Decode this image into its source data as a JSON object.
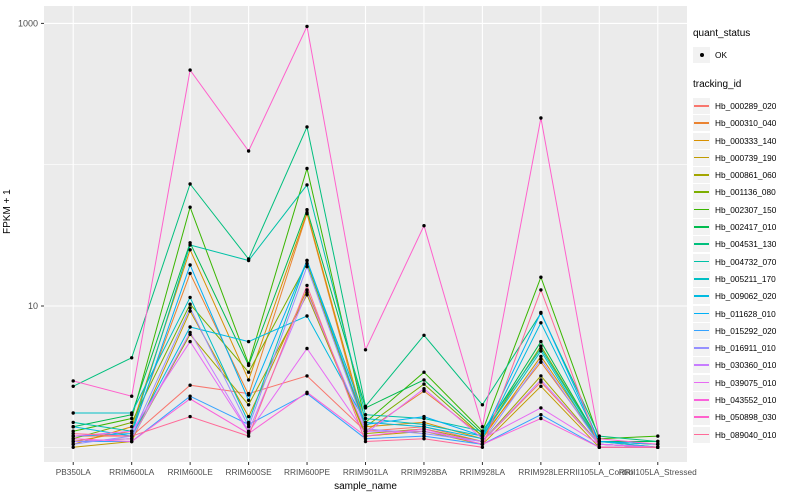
{
  "chart_data": {
    "type": "line",
    "xlabel": "sample_name",
    "ylabel": "FPKM + 1",
    "y_scale": "log10",
    "y_axis_ticks": [
      "10",
      "1000"
    ],
    "y_axis_tick_values": [
      10,
      1000
    ],
    "y_minor_gridline_values": [
      1,
      100
    ],
    "ylim": [
      0.78,
      1350
    ],
    "grid": "on",
    "legend_position": "right",
    "point_symbol_color": "#000000",
    "panel_background": "#EBEBEB",
    "gridline_color": "#FFFFFF",
    "axis_text_color": "#4D4D4D",
    "categories": [
      "PB350LA",
      "RRIM600LA",
      "RRIM600LE",
      "RRIM600SE",
      "RRIM600PE",
      "RRIM901LA",
      "RRIM928BA",
      "RRIM928LA",
      "RRIM928LE",
      "RRII105LA_Control",
      "RRII105LA_Stressed"
    ],
    "legend": {
      "quant_title": "quant_status",
      "quant_items": [
        {
          "label": "OK",
          "symbol": "black-point"
        }
      ],
      "tracking_title": "tracking_id"
    },
    "series": [
      {
        "name": "Hb_000289_020",
        "color": "#F8766D",
        "values": [
          1.2,
          1.2,
          2.75,
          2.4,
          3.2,
          1.3,
          1.4,
          1.1,
          2.9,
          1.05,
          1.0
        ]
      },
      {
        "name": "Hb_000310_040",
        "color": "#EA8331",
        "values": [
          1.1,
          1.3,
          17.0,
          2.35,
          45.0,
          1.3,
          2.5,
          1.2,
          4.0,
          1.1,
          1.05
        ]
      },
      {
        "name": "Hb_000333_140",
        "color": "#D89000",
        "values": [
          1.05,
          1.4,
          25.0,
          3.0,
          46.0,
          1.4,
          1.5,
          1.15,
          4.4,
          1.1,
          1.0
        ]
      },
      {
        "name": "Hb_000739_190",
        "color": "#C09B00",
        "values": [
          1.0,
          1.1,
          9.2,
          1.65,
          13.0,
          1.2,
          1.3,
          1.05,
          2.7,
          1.0,
          1.0
        ]
      },
      {
        "name": "Hb_000861_060",
        "color": "#A3A500",
        "values": [
          1.1,
          1.15,
          6.3,
          2.0,
          12.0,
          1.25,
          1.35,
          1.1,
          3.2,
          1.05,
          1.0
        ]
      },
      {
        "name": "Hb_001136_080",
        "color": "#7CAE00",
        "values": [
          1.15,
          1.5,
          10.3,
          3.4,
          20.0,
          1.4,
          2.8,
          1.2,
          5.2,
          1.1,
          1.1
        ]
      },
      {
        "name": "Hb_002307_150",
        "color": "#39B600",
        "values": [
          1.3,
          1.6,
          50.0,
          3.9,
          94.0,
          1.5,
          3.4,
          1.3,
          16.0,
          1.15,
          1.2
        ]
      },
      {
        "name": "Hb_002417_010",
        "color": "#00BB4E",
        "values": [
          1.4,
          1.7,
          28.0,
          3.8,
          48.0,
          1.9,
          3.0,
          1.25,
          5.6,
          1.1,
          1.1
        ]
      },
      {
        "name": "Hb_004531_130",
        "color": "#00BF7D",
        "values": [
          2.7,
          4.3,
          73.0,
          21.5,
          185.0,
          1.95,
          6.2,
          2.0,
          8.9,
          1.2,
          1.1
        ]
      },
      {
        "name": "Hb_004732_070",
        "color": "#00C1A7",
        "values": [
          1.5,
          1.3,
          27.0,
          21.0,
          72.0,
          1.7,
          1.6,
          1.3,
          5.0,
          1.1,
          1.05
        ]
      },
      {
        "name": "Hb_005211_170",
        "color": "#00BFC4",
        "values": [
          1.75,
          1.75,
          11.5,
          1.5,
          21.0,
          1.6,
          1.45,
          1.2,
          4.8,
          1.05,
          1.0
        ]
      },
      {
        "name": "Hb_009062_020",
        "color": "#00BAE0",
        "values": [
          1.4,
          1.2,
          7.1,
          5.6,
          8.5,
          1.5,
          1.4,
          1.15,
          7.6,
          1.1,
          1.0
        ]
      },
      {
        "name": "Hb_011628_010",
        "color": "#00B0F6",
        "values": [
          1.2,
          1.25,
          19.5,
          2.15,
          21.0,
          1.45,
          1.65,
          1.2,
          9.0,
          1.1,
          1.05
        ]
      },
      {
        "name": "Hb_015292_020",
        "color": "#35A2FF",
        "values": [
          1.1,
          1.1,
          2.3,
          1.45,
          2.4,
          1.15,
          1.2,
          1.05,
          1.7,
          1.0,
          1.0
        ]
      },
      {
        "name": "Hb_016911_010",
        "color": "#9590FF",
        "values": [
          1.05,
          1.2,
          9.7,
          1.4,
          19.0,
          1.35,
          1.25,
          1.1,
          4.2,
          1.05,
          1.0
        ]
      },
      {
        "name": "Hb_030360_010",
        "color": "#C77CFF",
        "values": [
          1.1,
          1.15,
          6.5,
          1.3,
          12.5,
          1.3,
          1.3,
          1.1,
          3.0,
          1.05,
          1.0
        ]
      },
      {
        "name": "Hb_039075_010",
        "color": "#E76BF3",
        "values": [
          1.2,
          1.3,
          5.6,
          1.28,
          5.0,
          1.25,
          2.6,
          1.15,
          1.9,
          1.05,
          1.0
        ]
      },
      {
        "name": "Hb_043552_010",
        "color": "#FA62DB",
        "values": [
          1.15,
          1.1,
          2.2,
          1.25,
          2.45,
          1.2,
          1.35,
          1.05,
          1.6,
          1.0,
          1.0
        ]
      },
      {
        "name": "Hb_050898_030",
        "color": "#FF61CC",
        "values": [
          2.95,
          2.3,
          467.0,
          125.0,
          953.0,
          4.9,
          37.0,
          1.4,
          214.0,
          1.15,
          1.05
        ]
      },
      {
        "name": "Hb_089040_010",
        "color": "#FF6A98",
        "values": [
          1.25,
          1.2,
          1.65,
          1.2,
          14.0,
          1.1,
          1.15,
          1.0,
          13.0,
          1.0,
          1.0
        ]
      }
    ]
  }
}
